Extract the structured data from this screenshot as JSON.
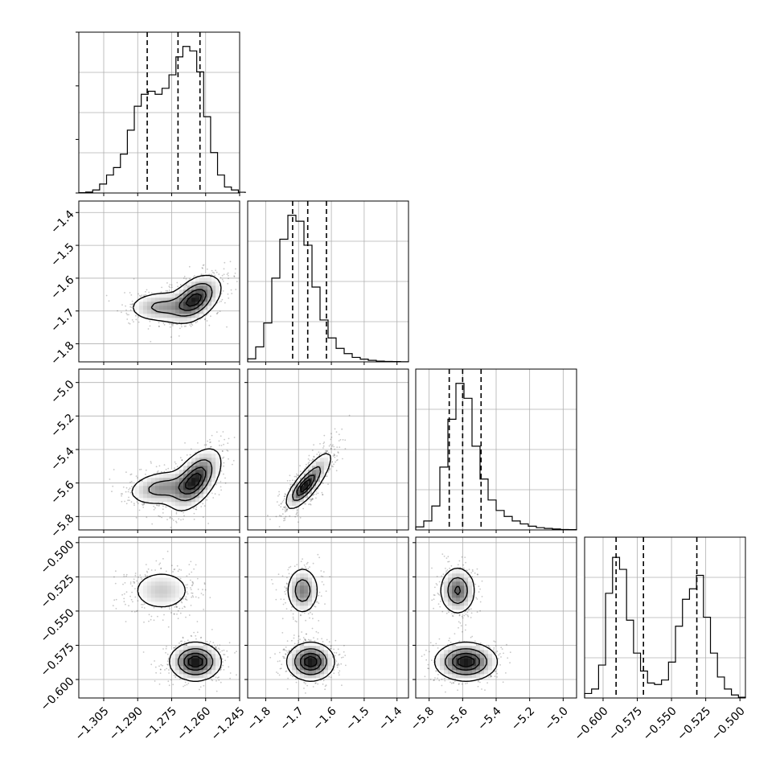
{
  "chart_data": {
    "type": "corner",
    "title": "",
    "parameters": [
      "",
      "",
      "",
      ""
    ],
    "ranges": [
      [
        -1.316,
        -1.245
      ],
      [
        -1.855,
        -1.365
      ],
      [
        -5.88,
        -4.92
      ],
      [
        -0.6135,
        -0.496
      ]
    ],
    "ticks": [
      [
        -1.305,
        -1.29,
        -1.275,
        -1.26,
        -1.245
      ],
      [
        -1.8,
        -1.7,
        -1.6,
        -1.5,
        -1.4
      ],
      [
        -5.8,
        -5.6,
        -5.4,
        -5.2,
        -5.0
      ],
      [
        -0.6,
        -0.575,
        -0.55,
        -0.525,
        -0.5
      ]
    ],
    "tick_labels": [
      [
        "−1.305",
        "−1.290",
        "−1.275",
        "−1.260",
        "−1.245"
      ],
      [
        "−1.8",
        "−1.7",
        "−1.6",
        "−1.5",
        "−1.4"
      ],
      [
        "−5.8",
        "−5.6",
        "−5.4",
        "−5.2",
        "−5.0"
      ],
      [
        "−0.600",
        "−0.575",
        "−0.550",
        "−0.525",
        "−0.500"
      ]
    ],
    "quantiles": [
      [
        -1.2858,
        -1.2722,
        -1.2625
      ],
      [
        -1.718,
        -1.672,
        -1.615
      ],
      [
        -5.68,
        -5.6,
        -5.49
      ],
      [
        -0.5905,
        -0.5705,
        -0.5315
      ]
    ],
    "histograms": [
      {
        "edges": [
          -1.316,
          -1.2425
        ],
        "counts": [
          0.002,
          0.006,
          0.02,
          0.06,
          0.12,
          0.17,
          0.26,
          0.42,
          0.58,
          0.66,
          0.68,
          0.66,
          0.7,
          0.79,
          0.91,
          0.98,
          0.95,
          0.81,
          0.51,
          0.27,
          0.12,
          0.04,
          0.02,
          0.005
        ]
      },
      {
        "edges": [
          -1.855,
          -1.365
        ],
        "counts": [
          0.02,
          0.1,
          0.26,
          0.56,
          0.82,
          0.98,
          0.94,
          0.78,
          0.5,
          0.28,
          0.16,
          0.09,
          0.055,
          0.03,
          0.018,
          0.01,
          0.005,
          0.003,
          0.002,
          0.001
        ]
      },
      {
        "edges": [
          -5.88,
          -4.92
        ],
        "counts": [
          0.02,
          0.06,
          0.16,
          0.42,
          0.74,
          0.98,
          0.88,
          0.56,
          0.34,
          0.2,
          0.13,
          0.09,
          0.06,
          0.04,
          0.025,
          0.015,
          0.01,
          0.006,
          0.003,
          0.002
        ]
      },
      {
        "edges": [
          -0.6135,
          -0.496
        ],
        "counts": [
          0.03,
          0.06,
          0.22,
          0.7,
          0.94,
          0.86,
          0.52,
          0.3,
          0.18,
          0.1,
          0.09,
          0.12,
          0.24,
          0.48,
          0.66,
          0.73,
          0.82,
          0.54,
          0.3,
          0.14,
          0.06,
          0.02,
          0.005
        ]
      }
    ],
    "modes": [
      {
        "weight": 0.34,
        "mean": [
          -1.2795,
          -1.6875,
          -5.63,
          -0.535
        ],
        "sd": [
          0.0075,
          0.024,
          0.052,
          0.0085
        ],
        "corr": [
          [
            1,
            0.05,
            0.25,
            0
          ],
          [
            0.05,
            1,
            0.72,
            0
          ],
          [
            0.25,
            0.72,
            1,
            0
          ],
          [
            0,
            0,
            0,
            1
          ]
        ]
      },
      {
        "weight": 0.66,
        "mean": [
          -1.2645,
          -1.663,
          -5.58,
          -0.587
        ],
        "sd": [
          0.0055,
          0.035,
          0.09,
          0.0068
        ],
        "corr": [
          [
            1,
            0.45,
            0.55,
            0
          ],
          [
            0.45,
            1,
            0.82,
            0
          ],
          [
            0.55,
            0.82,
            1,
            0
          ],
          [
            0,
            0,
            0,
            1
          ]
        ]
      }
    ],
    "grid": true,
    "contour_levels": [
      0.118,
      0.393,
      0.675,
      0.865
    ]
  }
}
